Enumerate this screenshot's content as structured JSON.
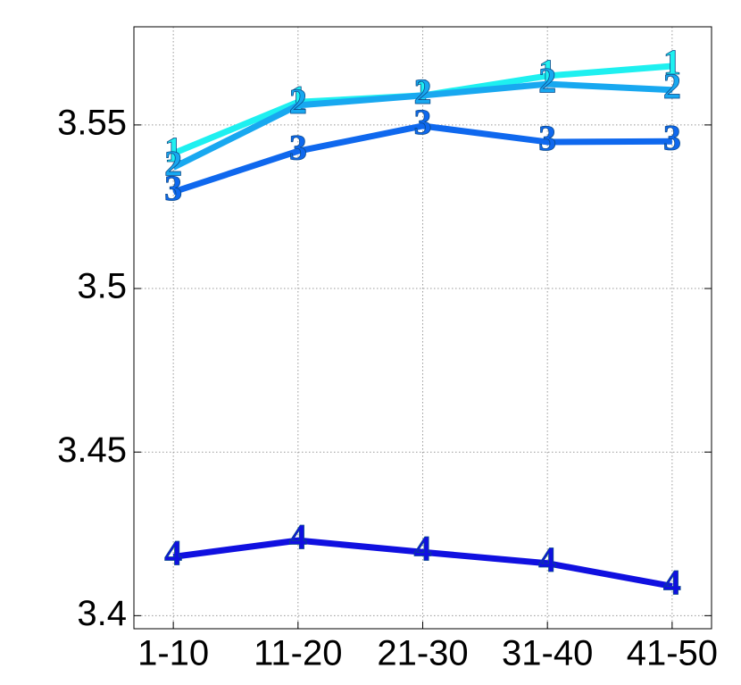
{
  "chart_data": {
    "type": "line",
    "categories": [
      "1-10",
      "11-20",
      "21-30",
      "31-40",
      "41-50"
    ],
    "series": [
      {
        "name": "1",
        "color": "#1ef0f0",
        "values": [
          3.5413,
          3.557,
          3.559,
          3.565,
          3.568
        ]
      },
      {
        "name": "2",
        "color": "#18a8f0",
        "values": [
          3.537,
          3.556,
          3.559,
          3.5625,
          3.5607
        ]
      },
      {
        "name": "3",
        "color": "#0f68ee",
        "values": [
          3.5295,
          3.542,
          3.5497,
          3.5448,
          3.545
        ]
      },
      {
        "name": "4",
        "color": "#1010e0",
        "values": [
          3.418,
          3.423,
          3.4194,
          3.416,
          3.409
        ]
      }
    ],
    "ylim": [
      3.396,
      3.58
    ],
    "yticks": [
      3.4,
      3.45,
      3.5,
      3.55
    ],
    "grid": true
  }
}
